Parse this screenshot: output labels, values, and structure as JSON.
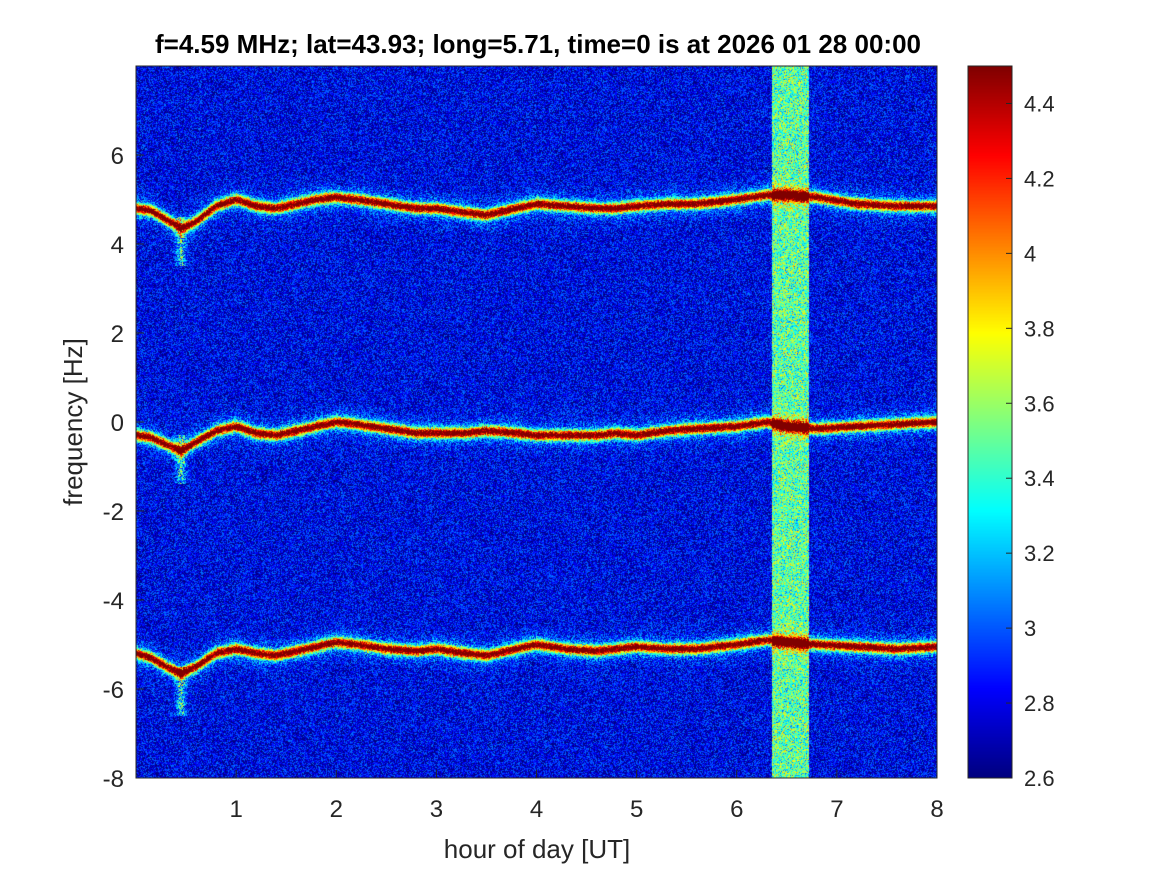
{
  "chart_data": {
    "type": "heatmap",
    "title": "f=4.59 MHz;  lat=43.93; long=5.71, time=0 is at 2026 01 28 00:00",
    "xlabel": "hour of day [UT]",
    "ylabel": "frequency [Hz]",
    "xlim": [
      0,
      8
    ],
    "ylim": [
      -8,
      8
    ],
    "xticks": [
      "1",
      "2",
      "3",
      "4",
      "5",
      "6",
      "7",
      "8"
    ],
    "yticks": [
      "-8",
      "-6",
      "-4",
      "-2",
      "0",
      "2",
      "4",
      "6"
    ],
    "colorbar": {
      "range": [
        2.6,
        4.5
      ],
      "colormap": "jet",
      "ticks": [
        "2.6",
        "2.8",
        "3",
        "3.2",
        "3.4",
        "3.6",
        "3.8",
        "4",
        "4.2",
        "4.4"
      ]
    },
    "background_level": 2.8,
    "traces": [
      {
        "hours": [
          0,
          0.15,
          0.3,
          0.45,
          0.6,
          0.8,
          1.0,
          1.2,
          1.4,
          1.6,
          1.8,
          2.0,
          2.2,
          2.5,
          2.8,
          3.0,
          3.3,
          3.5,
          3.8,
          4.0,
          4.3,
          4.6,
          4.8,
          5.0,
          5.3,
          5.6,
          6.0,
          6.3,
          6.5,
          6.8,
          7.2,
          7.6,
          8.0
        ],
        "freq": [
          4.8,
          4.75,
          4.55,
          4.35,
          4.5,
          4.85,
          5.0,
          4.85,
          4.8,
          4.9,
          5.0,
          5.05,
          5.0,
          4.9,
          4.8,
          4.8,
          4.7,
          4.65,
          4.8,
          4.9,
          4.85,
          4.8,
          4.8,
          4.85,
          4.9,
          4.9,
          5.0,
          5.1,
          5.1,
          5.05,
          4.9,
          4.85,
          4.85
        ]
      },
      {
        "hours": [
          0,
          0.15,
          0.3,
          0.45,
          0.6,
          0.8,
          1.0,
          1.2,
          1.4,
          1.6,
          1.8,
          2.0,
          2.2,
          2.5,
          2.8,
          3.0,
          3.3,
          3.5,
          3.8,
          4.0,
          4.3,
          4.6,
          4.8,
          5.0,
          5.3,
          5.6,
          6.0,
          6.3,
          6.5,
          6.8,
          7.2,
          7.6,
          8.0
        ],
        "freq": [
          -0.3,
          -0.35,
          -0.5,
          -0.65,
          -0.45,
          -0.2,
          -0.1,
          -0.25,
          -0.3,
          -0.2,
          -0.1,
          0.0,
          -0.05,
          -0.15,
          -0.25,
          -0.25,
          -0.25,
          -0.2,
          -0.25,
          -0.3,
          -0.3,
          -0.3,
          -0.25,
          -0.3,
          -0.2,
          -0.15,
          -0.1,
          0.0,
          -0.1,
          -0.15,
          -0.1,
          -0.05,
          0.0
        ]
      },
      {
        "hours": [
          0,
          0.15,
          0.3,
          0.45,
          0.6,
          0.8,
          1.0,
          1.2,
          1.4,
          1.6,
          1.8,
          2.0,
          2.2,
          2.5,
          2.8,
          3.0,
          3.3,
          3.5,
          3.8,
          4.0,
          4.3,
          4.6,
          4.8,
          5.0,
          5.3,
          5.6,
          6.0,
          6.3,
          6.5,
          6.8,
          7.2,
          7.6,
          8.0
        ],
        "freq": [
          -5.2,
          -5.3,
          -5.5,
          -5.65,
          -5.5,
          -5.2,
          -5.1,
          -5.2,
          -5.25,
          -5.15,
          -5.05,
          -4.95,
          -5.0,
          -5.1,
          -5.15,
          -5.1,
          -5.2,
          -5.25,
          -5.1,
          -5.0,
          -5.1,
          -5.15,
          -5.1,
          -5.05,
          -5.1,
          -5.1,
          -5.0,
          -4.9,
          -4.95,
          -5.0,
          -5.05,
          -5.1,
          -5.05
        ]
      }
    ],
    "dips": [
      {
        "hour": 0.45,
        "freq": 3.6
      },
      {
        "hour": 0.45,
        "freq": -1.3
      },
      {
        "hour": 0.45,
        "freq": -6.5
      }
    ],
    "noisy_band_hours": [
      6.35,
      6.72
    ]
  }
}
